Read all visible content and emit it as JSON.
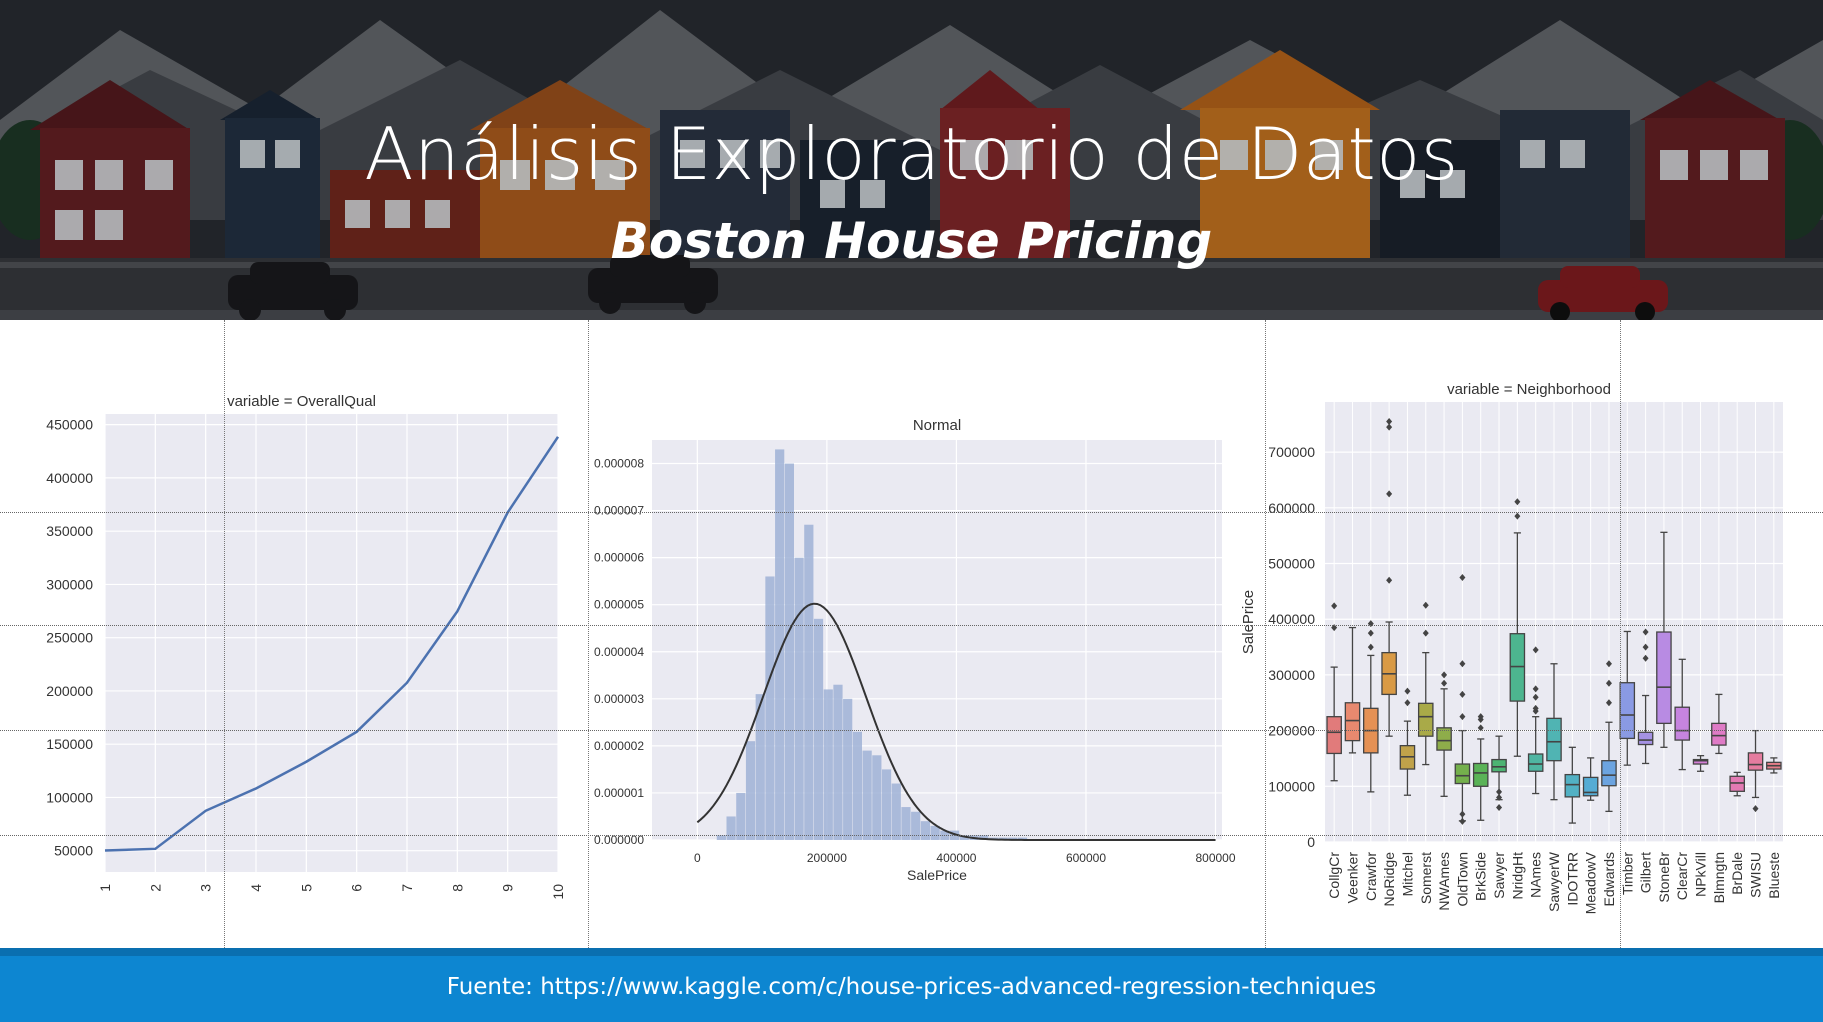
{
  "slide": {
    "title": "Análisis Exploratorio de Datos",
    "subtitle": "Boston House Pricing",
    "footer": "Fuente: https://www.kaggle.com/c/house-prices-advanced-regression-techniques"
  },
  "colors": {
    "footer": "#0d86d1",
    "line": "#4c72b0",
    "hist": "#9fb2d6",
    "plot_bg": "#eaeaf2"
  },
  "chart_data": [
    {
      "type": "line",
      "title": "variable = OverallQual",
      "xlabel": "",
      "ylabel": "",
      "x": [
        1,
        2,
        3,
        4,
        5,
        6,
        7,
        8,
        9,
        10
      ],
      "y": [
        50150,
        51770,
        87473,
        108420,
        133523,
        161603,
        207716,
        274736,
        367513,
        438588
      ],
      "xticks": [
        "1",
        "2",
        "3",
        "4",
        "5",
        "6",
        "7",
        "8",
        "9",
        "10"
      ],
      "yticks": [
        "50000",
        "100000",
        "150000",
        "200000",
        "250000",
        "300000",
        "350000",
        "400000",
        "450000"
      ],
      "ylim": [
        30000,
        460000
      ],
      "grid": true
    },
    {
      "type": "bar",
      "title": "Normal",
      "xlabel": "SalePrice",
      "ylabel": "",
      "xticks": [
        "0",
        "200000",
        "400000",
        "600000",
        "800000"
      ],
      "yticks": [
        "0.000000",
        "0.000001",
        "0.000002",
        "0.000003",
        "0.000004",
        "0.000005",
        "0.000006",
        "0.000007",
        "0.000008"
      ],
      "xlim": [
        -70000,
        810000
      ],
      "ylim": [
        0,
        8.5e-06
      ],
      "bin_start": 30000,
      "bin_width": 15000,
      "density": [
        1e-07,
        5e-07,
        1e-06,
        2.1e-06,
        3.1e-06,
        5.6e-06,
        8.3e-06,
        8e-06,
        6e-06,
        6.7e-06,
        4.7e-06,
        3.2e-06,
        3.3e-06,
        3e-06,
        2.3e-06,
        1.9e-06,
        1.8e-06,
        1.5e-06,
        1.2e-06,
        7e-07,
        6e-07,
        4e-07,
        3e-07,
        2e-07,
        2e-07,
        1e-07,
        1e-07,
        1e-07,
        5e-08,
        5e-08,
        5e-08,
        5e-08
      ],
      "normal_fit": {
        "mean": 180921,
        "std": 79443
      },
      "grid": true
    },
    {
      "type": "box",
      "title": "variable = Neighborhood",
      "xlabel": "",
      "ylabel": "SalePrice",
      "yticks": [
        "0",
        "100000",
        "200000",
        "300000",
        "400000",
        "500000",
        "600000",
        "700000"
      ],
      "ylim": [
        0,
        790000
      ],
      "categories": [
        "CollgCr",
        "Veenker",
        "Crawfor",
        "NoRidge",
        "Mitchel",
        "Somerst",
        "NWAmes",
        "OldTown",
        "BrkSide",
        "Sawyer",
        "NridgHt",
        "NAmes",
        "SawyerW",
        "IDOTRR",
        "MeadowV",
        "Edwards",
        "Timber",
        "Gilbert",
        "StoneBr",
        "ClearCr",
        "NPkVill",
        "Blmngtn",
        "BrDale",
        "SWISU",
        "Blueste"
      ],
      "colors": [
        "#e17b7b",
        "#e8896f",
        "#e59154",
        "#d99a45",
        "#c0a24a",
        "#a9aa48",
        "#8ead4a",
        "#74b04c",
        "#5ab357",
        "#4db473",
        "#4db58f",
        "#4fb5a2",
        "#50b4b3",
        "#52b1c4",
        "#55acd4",
        "#6ca4e0",
        "#8a9ae4",
        "#a592e4",
        "#b88be3",
        "#c684df",
        "#d47fd6",
        "#df7bc6",
        "#e37ab3",
        "#e57c9f",
        "#e67e8a"
      ],
      "boxes": [
        {
          "min": 110000,
          "q1": 159000,
          "median": 197000,
          "q3": 225000,
          "max": 314000,
          "outliers": [
            385000,
            424000
          ]
        },
        {
          "min": 160000,
          "q1": 182000,
          "median": 218000,
          "q3": 250000,
          "max": 385000,
          "outliers": []
        },
        {
          "min": 90000,
          "q1": 160000,
          "median": 200000,
          "q3": 240000,
          "max": 335000,
          "outliers": [
            350000,
            375000,
            392000
          ]
        },
        {
          "min": 190000,
          "q1": 265000,
          "median": 302000,
          "q3": 340000,
          "max": 395000,
          "outliers": [
            470000,
            625000,
            745000,
            755000
          ]
        },
        {
          "min": 84000,
          "q1": 131000,
          "median": 153000,
          "q3": 173000,
          "max": 217000,
          "outliers": [
            250000,
            271000
          ]
        },
        {
          "min": 139000,
          "q1": 190000,
          "median": 225000,
          "q3": 249000,
          "max": 340000,
          "outliers": [
            375000,
            425000
          ]
        },
        {
          "min": 82000,
          "q1": 165000,
          "median": 182000,
          "q3": 205000,
          "max": 275000,
          "outliers": [
            285000,
            300000
          ]
        },
        {
          "min": 38000,
          "q1": 105000,
          "median": 119000,
          "q3": 140000,
          "max": 200000,
          "outliers": [
            37000,
            50000,
            225000,
            265000,
            320000,
            475000
          ]
        },
        {
          "min": 39000,
          "q1": 100000,
          "median": 124000,
          "q3": 141000,
          "max": 185000,
          "outliers": [
            205000,
            220000,
            225000
          ]
        },
        {
          "min": 76000,
          "q1": 126000,
          "median": 135000,
          "q3": 148000,
          "max": 190000,
          "outliers": [
            62000,
            80000,
            90000
          ]
        },
        {
          "min": 154000,
          "q1": 253000,
          "median": 315000,
          "q3": 374000,
          "max": 555000,
          "outliers": [
            585000,
            611000
          ]
        },
        {
          "min": 87000,
          "q1": 127000,
          "median": 140000,
          "q3": 158000,
          "max": 225000,
          "outliers": [
            235000,
            240000,
            260000,
            275000,
            345000
          ]
        },
        {
          "min": 76000,
          "q1": 146000,
          "median": 180000,
          "q3": 222000,
          "max": 320000,
          "outliers": []
        },
        {
          "min": 34000,
          "q1": 81000,
          "median": 103000,
          "q3": 121000,
          "max": 170000,
          "outliers": []
        },
        {
          "min": 75000,
          "q1": 83000,
          "median": 89000,
          "q3": 116000,
          "max": 151000,
          "outliers": []
        },
        {
          "min": 55000,
          "q1": 101000,
          "median": 120000,
          "q3": 146000,
          "max": 215000,
          "outliers": [
            250000,
            285000,
            320000
          ]
        },
        {
          "min": 138000,
          "q1": 186000,
          "median": 228000,
          "q3": 286000,
          "max": 378000,
          "outliers": []
        },
        {
          "min": 141000,
          "q1": 175000,
          "median": 183000,
          "q3": 197000,
          "max": 263000,
          "outliers": [
            330000,
            350000,
            377000
          ]
        },
        {
          "min": 170000,
          "q1": 213000,
          "median": 278000,
          "q3": 377000,
          "max": 556000,
          "outliers": []
        },
        {
          "min": 130000,
          "q1": 183000,
          "median": 200000,
          "q3": 242000,
          "max": 328000,
          "outliers": []
        },
        {
          "min": 127000,
          "q1": 140000,
          "median": 146000,
          "q3": 148000,
          "max": 155000,
          "outliers": []
        },
        {
          "min": 159000,
          "q1": 174000,
          "median": 191000,
          "q3": 213000,
          "max": 265000,
          "outliers": []
        },
        {
          "min": 83000,
          "q1": 91000,
          "median": 106000,
          "q3": 118000,
          "max": 125000,
          "outliers": []
        },
        {
          "min": 80000,
          "q1": 129000,
          "median": 139000,
          "q3": 160000,
          "max": 200000,
          "outliers": [
            60000
          ]
        },
        {
          "min": 124000,
          "q1": 131000,
          "median": 137000,
          "q3": 143000,
          "max": 151000,
          "outliers": []
        }
      ],
      "grid": true
    }
  ]
}
